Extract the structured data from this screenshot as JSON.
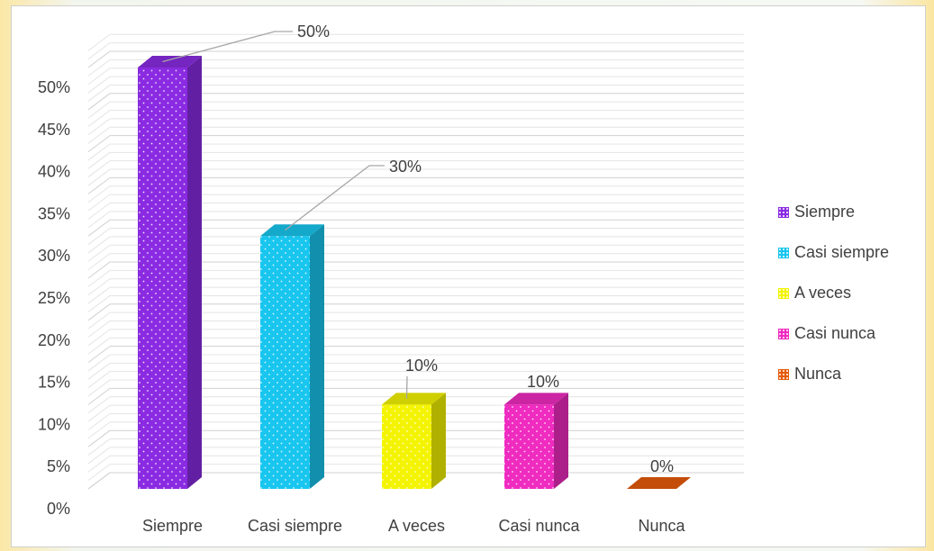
{
  "chart_data": {
    "type": "bar",
    "categories": [
      "Siempre",
      "Casi siempre",
      "A veces",
      "Casi nunca",
      "Nunca"
    ],
    "values": [
      50,
      30,
      10,
      10,
      0
    ],
    "value_labels": [
      "50%",
      "30%",
      "10%",
      "10%",
      "0%"
    ],
    "y_ticks": [
      "0%",
      "5%",
      "10%",
      "15%",
      "20%",
      "25%",
      "30%",
      "35%",
      "40%",
      "45%",
      "50%"
    ],
    "ylim": [
      0,
      50
    ],
    "colors": [
      "#8a2be2",
      "#18c6ef",
      "#f4f400",
      "#ef2bc0",
      "#e55b0a"
    ],
    "legend_position": "right",
    "grid": true
  }
}
